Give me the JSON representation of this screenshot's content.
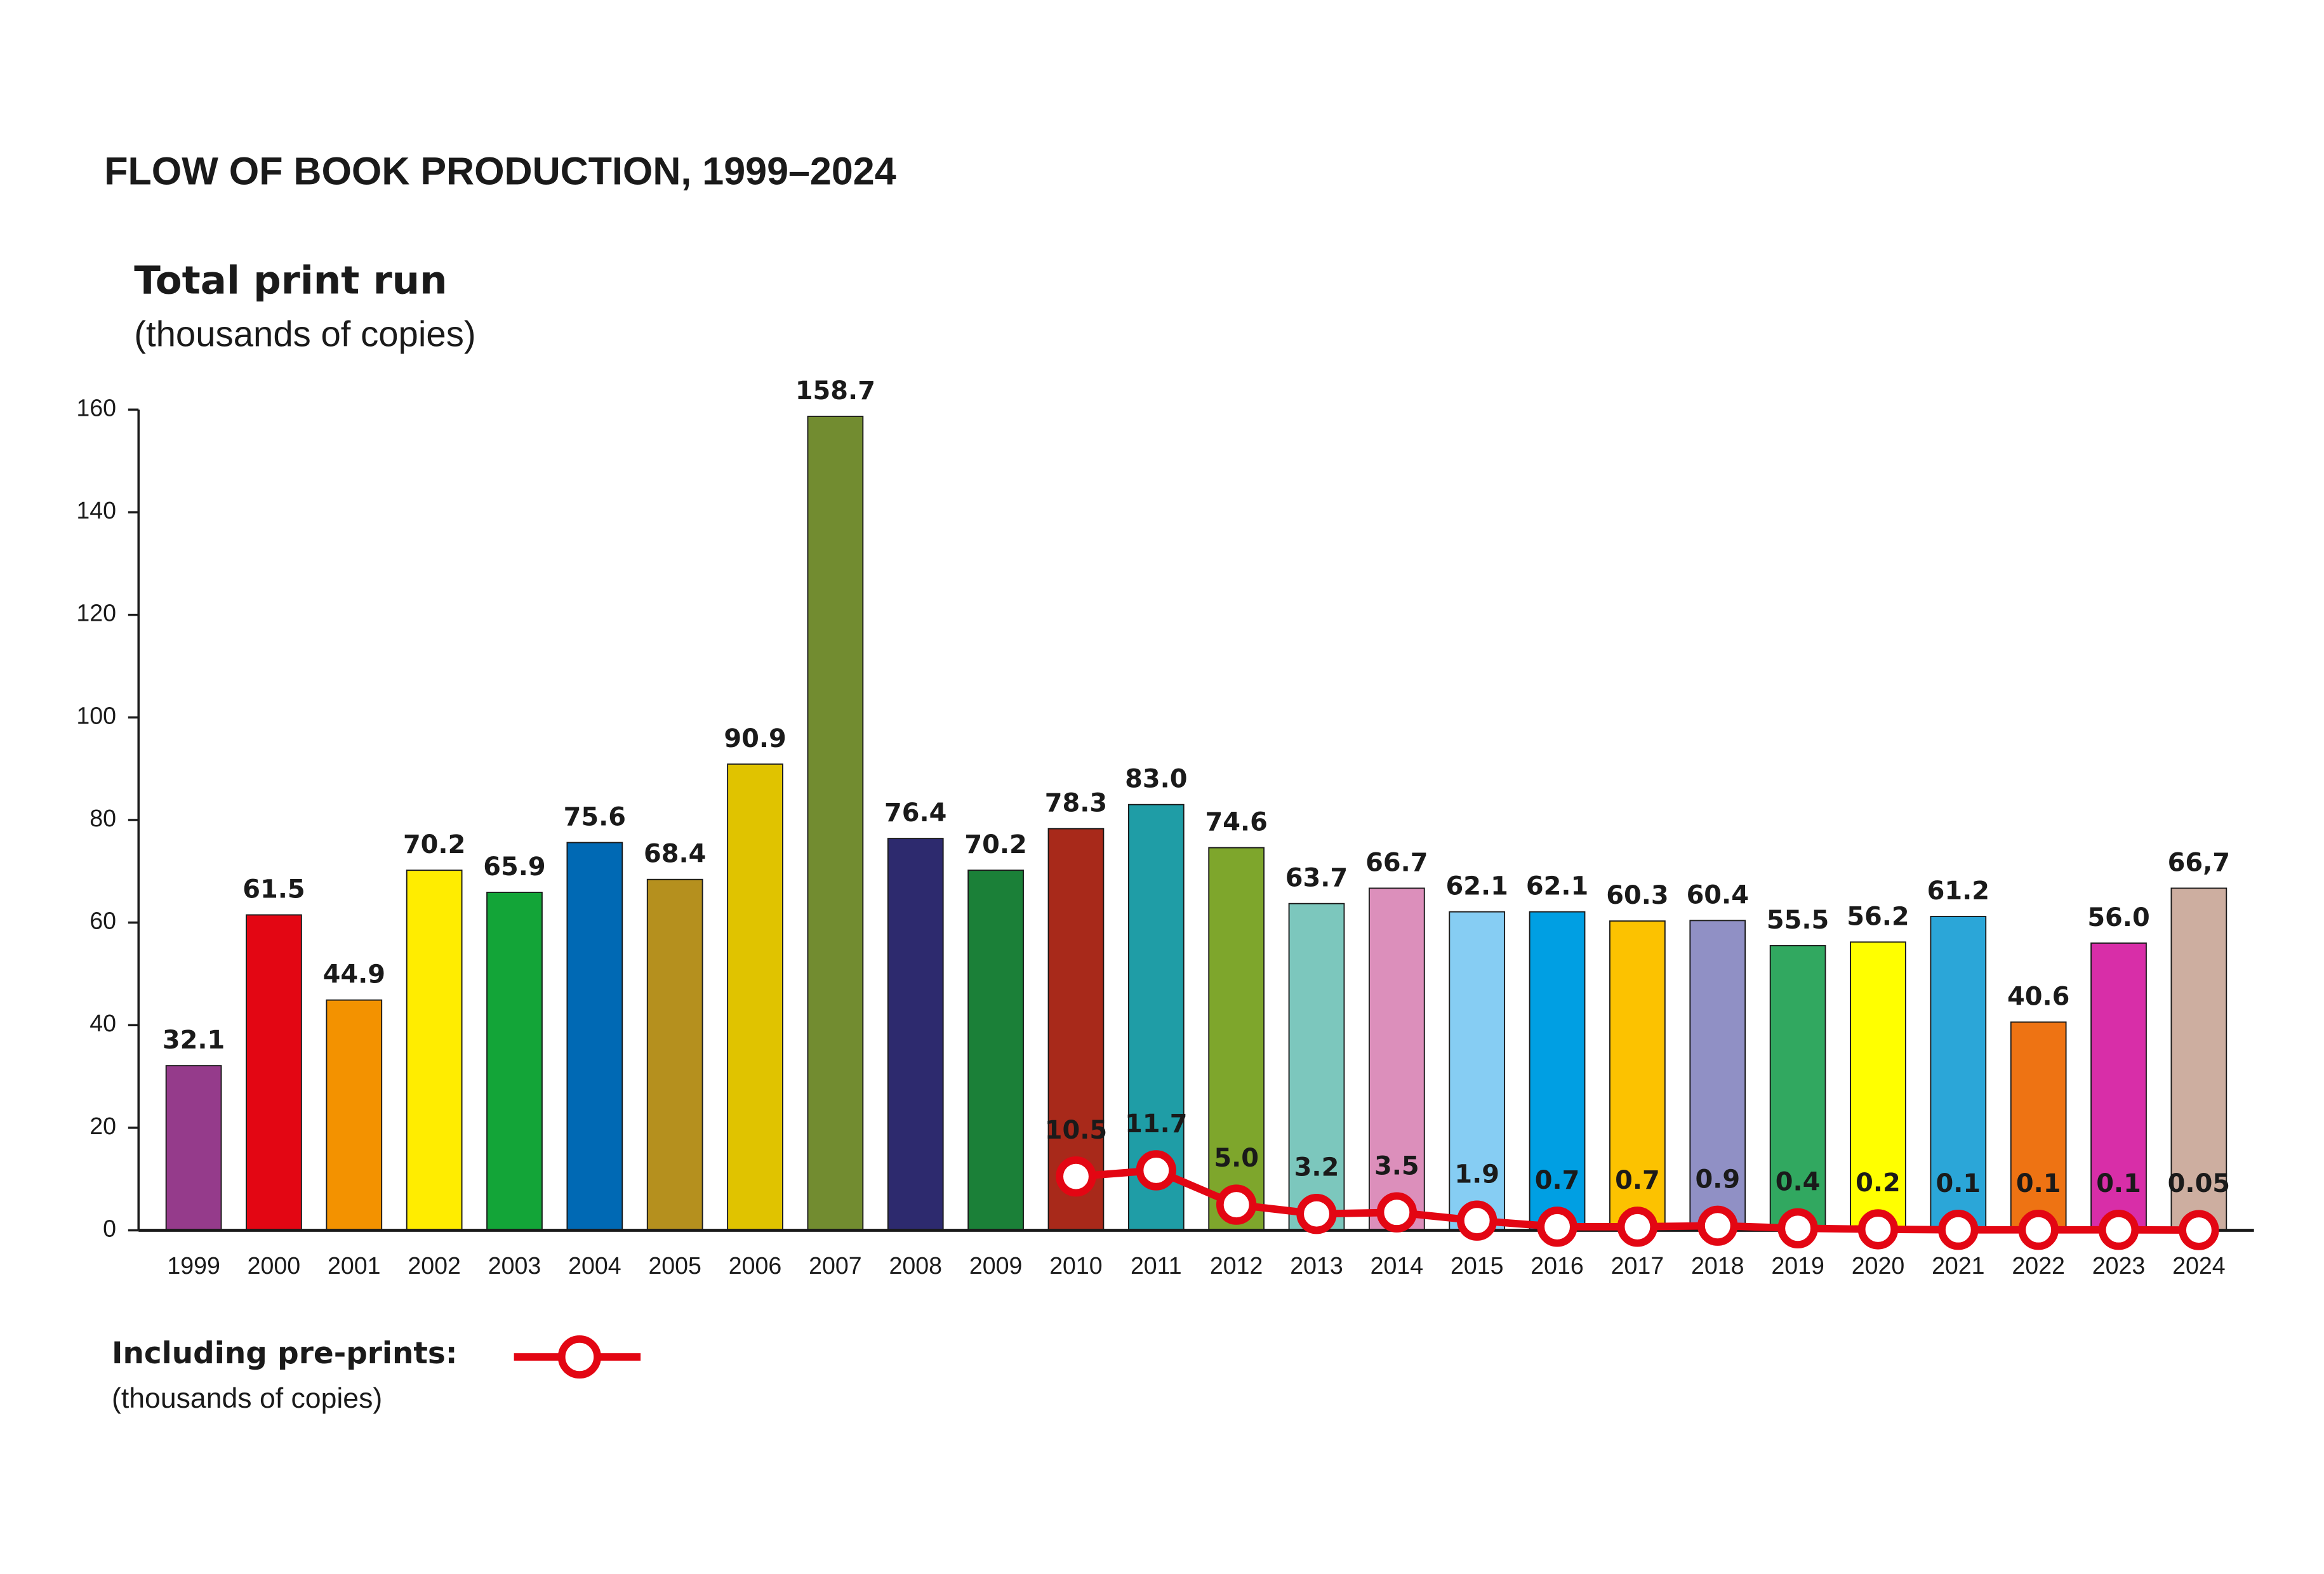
{
  "chart_data": {
    "type": "bar",
    "title": "FLOW OF BOOK PRODUCTION, 1999–2024",
    "y_label": "Total print run",
    "y_unit": "(thousands of copies)",
    "categories": [
      "1999",
      "2000",
      "2001",
      "2002",
      "2003",
      "2004",
      "2005",
      "2006",
      "2007",
      "2008",
      "2009",
      "2010",
      "2011",
      "2012",
      "2013",
      "2014",
      "2015",
      "2016",
      "2017",
      "2018",
      "2019",
      "2020",
      "2021",
      "2022",
      "2023",
      "2024"
    ],
    "values": [
      32.1,
      61.5,
      44.9,
      70.2,
      65.9,
      75.6,
      68.4,
      90.9,
      158.7,
      76.4,
      70.2,
      78.3,
      83.0,
      74.6,
      63.7,
      66.7,
      62.1,
      62.1,
      60.3,
      60.4,
      55.5,
      56.2,
      61.2,
      40.6,
      56.0,
      66.7
    ],
    "value_labels": [
      "32.1",
      "61.5",
      "44.9",
      "70.2",
      "65.9",
      "75.6",
      "68.4",
      "90.9",
      "158.7",
      "76.4",
      "70.2",
      "78.3",
      "83.0",
      "74.6",
      "63.7",
      "66.7",
      "62.1",
      "62.1",
      "60.3",
      "60.4",
      "55.5",
      "56.2",
      "61.2",
      "40.6",
      "56.0",
      "66,7"
    ],
    "colors": [
      "#953b8b",
      "#e30613",
      "#f39200",
      "#ffed00",
      "#13a538",
      "#0069b4",
      "#b5901e",
      "#e0c300",
      "#728c30",
      "#2d2a6e",
      "#1b8038",
      "#a8291a",
      "#1f9da6",
      "#7ea62c",
      "#7cc7bd",
      "#dc8fbb",
      "#86cdf3",
      "#009fe3",
      "#fcc200",
      "#9090c5",
      "#31a860",
      "#ffff00",
      "#2ba6d8",
      "#ee7313",
      "#d82ea8",
      "#cdaea0"
    ],
    "ylim": [
      0,
      160
    ],
    "yticks": [
      0,
      20,
      40,
      60,
      80,
      100,
      120,
      140,
      160
    ],
    "line": {
      "name": "Including pre-prints:",
      "unit": "(thousands of copies)",
      "color": "#e30613",
      "values": [
        null,
        null,
        null,
        null,
        null,
        null,
        null,
        null,
        null,
        null,
        null,
        10.5,
        11.7,
        5.0,
        3.2,
        3.5,
        1.9,
        0.7,
        0.7,
        0.9,
        0.4,
        0.2,
        0.1,
        0.1,
        0.1,
        0.05
      ],
      "value_labels": [
        null,
        null,
        null,
        null,
        null,
        null,
        null,
        null,
        null,
        null,
        null,
        "10.5",
        "11.7",
        "5.0",
        "3.2",
        "3.5",
        "1.9",
        "0.7",
        "0.7",
        "0.9",
        "0.4",
        "0.2",
        "0.1",
        "0.1",
        "0.1",
        "0.05"
      ]
    }
  }
}
